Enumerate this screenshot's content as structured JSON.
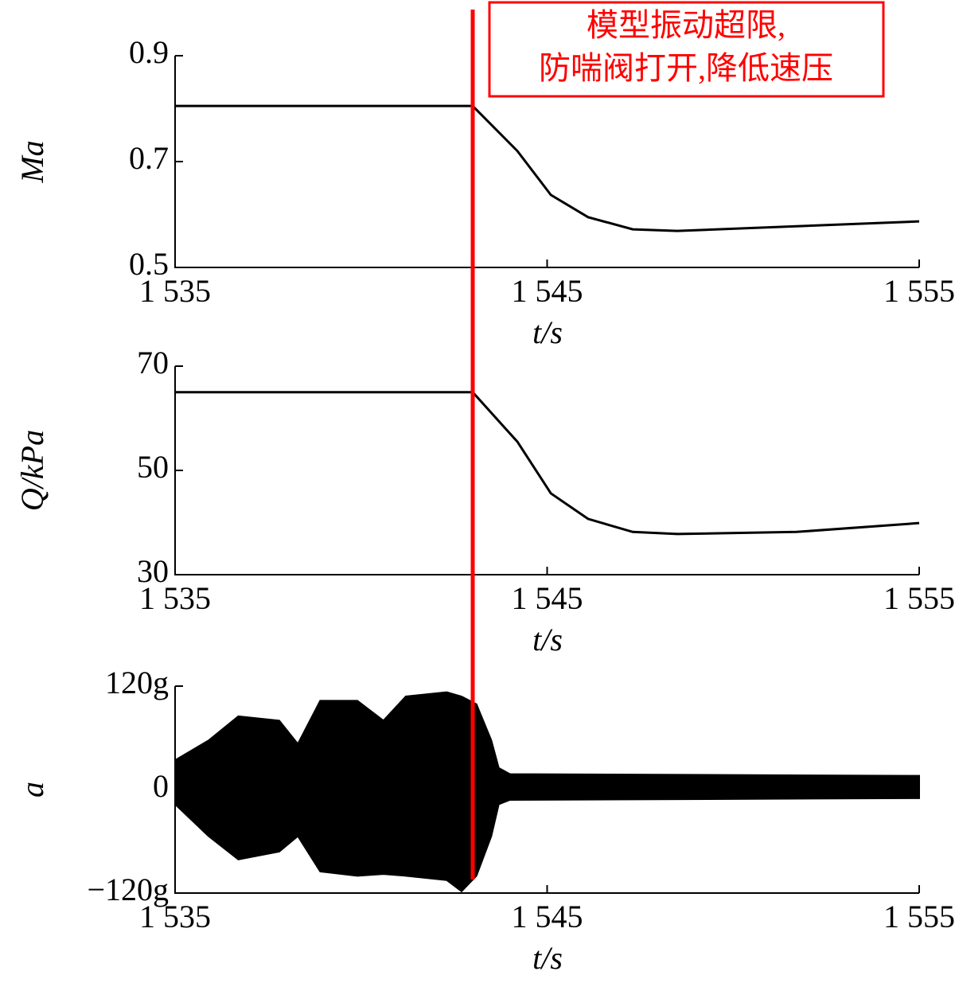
{
  "chart_data": [
    {
      "type": "line",
      "ylabel": "Ma",
      "xlabel": "t/s",
      "x": [
        1535,
        1543,
        1544.2,
        1545.1,
        1546.1,
        1547.3,
        1548.5,
        1555
      ],
      "values": [
        0.805,
        0.805,
        0.72,
        0.637,
        0.595,
        0.572,
        0.569,
        0.587
      ],
      "color": "#000000",
      "xlim": [
        1535,
        1555
      ],
      "xticks": [
        {
          "value": 1535,
          "label": "1 535"
        },
        {
          "value": 1545,
          "label": "1 545"
        },
        {
          "value": 1555,
          "label": "1 555"
        }
      ],
      "ylim": [
        0.5,
        0.9
      ],
      "yticks": [
        0.5,
        0.7,
        0.9
      ]
    },
    {
      "type": "line",
      "ylabel": "Q/kPa",
      "xlabel": "t/s",
      "x": [
        1535,
        1543,
        1544.2,
        1545.1,
        1546.1,
        1547.3,
        1548.5,
        1551.7,
        1555
      ],
      "values": [
        65,
        65,
        55.5,
        45.6,
        40.7,
        38.2,
        37.8,
        38.2,
        39.9
      ],
      "color": "#000000",
      "xlim": [
        1535,
        1555
      ],
      "xticks": [
        {
          "value": 1535,
          "label": "1 535"
        },
        {
          "value": 1545,
          "label": "1 545"
        },
        {
          "value": 1555,
          "label": "1 555"
        }
      ],
      "ylim": [
        30,
        70
      ],
      "yticks": [
        30,
        50,
        70
      ]
    },
    {
      "type": "envelope",
      "ylabel": "a",
      "xlabel": "t/s",
      "x": [
        1535,
        1535.9,
        1536.7,
        1537.8,
        1538.3,
        1538.9,
        1539.9,
        1540.6,
        1541.2,
        1542.3,
        1542.7,
        1543.1,
        1543.5,
        1543.7,
        1544,
        1555
      ],
      "upper": [
        34,
        57,
        85,
        80,
        53,
        103,
        103,
        80,
        108,
        113,
        108,
        99,
        57,
        25,
        18,
        16
      ],
      "lower": [
        -17,
        -54,
        -81,
        -72,
        -54,
        -95,
        -100,
        -98,
        -100,
        -105,
        -118,
        -100,
        -54,
        -17,
        -12,
        -10
      ],
      "color": "#000000",
      "xlim": [
        1535,
        1555
      ],
      "xticks": [
        {
          "value": 1535,
          "label": "1 535"
        },
        {
          "value": 1545,
          "label": "1 545"
        },
        {
          "value": 1555,
          "label": "1 555"
        }
      ],
      "ylim": [
        -120,
        120
      ],
      "yticks": [
        {
          "value": -120,
          "label": "−120g"
        },
        0,
        {
          "value": 120,
          "label": "120g"
        }
      ]
    }
  ],
  "annotation": {
    "x": 1543,
    "color": "#ff0000",
    "lines": [
      "模型振动超限,",
      "防喘阀打开,降低速压"
    ]
  }
}
